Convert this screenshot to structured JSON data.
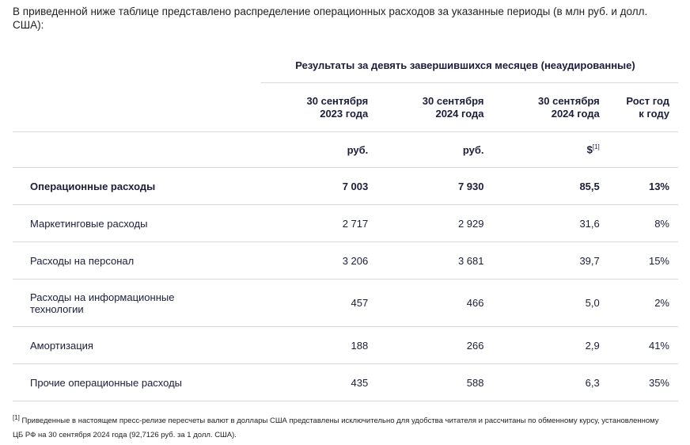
{
  "intro": "В приведенной ниже таблице представлено распределение операционных расходов за указанные периоды (в млн руб. и долл. США):",
  "table": {
    "group_header": "Результаты за девять завершившихся месяцев (неаудированные)",
    "columns": [
      "30 сентября 2023 года",
      "30 сентября 2024 года",
      "30 сентября 2024 года",
      "Рост год к году"
    ],
    "units": [
      "руб.",
      "руб.",
      "$"
    ],
    "units_note": "[1]",
    "rows": [
      [
        "Операционные расходы",
        "7 003",
        "7 930",
        "85,5",
        "13%"
      ],
      [
        "Маркетинговые расходы",
        "2 717",
        "2 929",
        "31,6",
        "8%"
      ],
      [
        "Расходы на персонал",
        "3 206",
        "3 681",
        "39,7",
        "15%"
      ],
      [
        "Расходы на информационные технологии",
        "457",
        "466",
        "5,0",
        "2%"
      ],
      [
        "Амортизация",
        "188",
        "266",
        "2,9",
        "41%"
      ],
      [
        "Прочие операционные расходы",
        "435",
        "588",
        "6,3",
        "35%"
      ]
    ]
  },
  "footnote": {
    "marker": "[1]",
    "text": "Приведенные в настоящем пресс-релизе пересчеты валют в доллары США представлены исключительно для удобства читателя и рассчитаны по обменному курсу, установленному ЦБ РФ на 30 сентября 2024 года (92,7126 руб. за 1 долл. США)."
  }
}
